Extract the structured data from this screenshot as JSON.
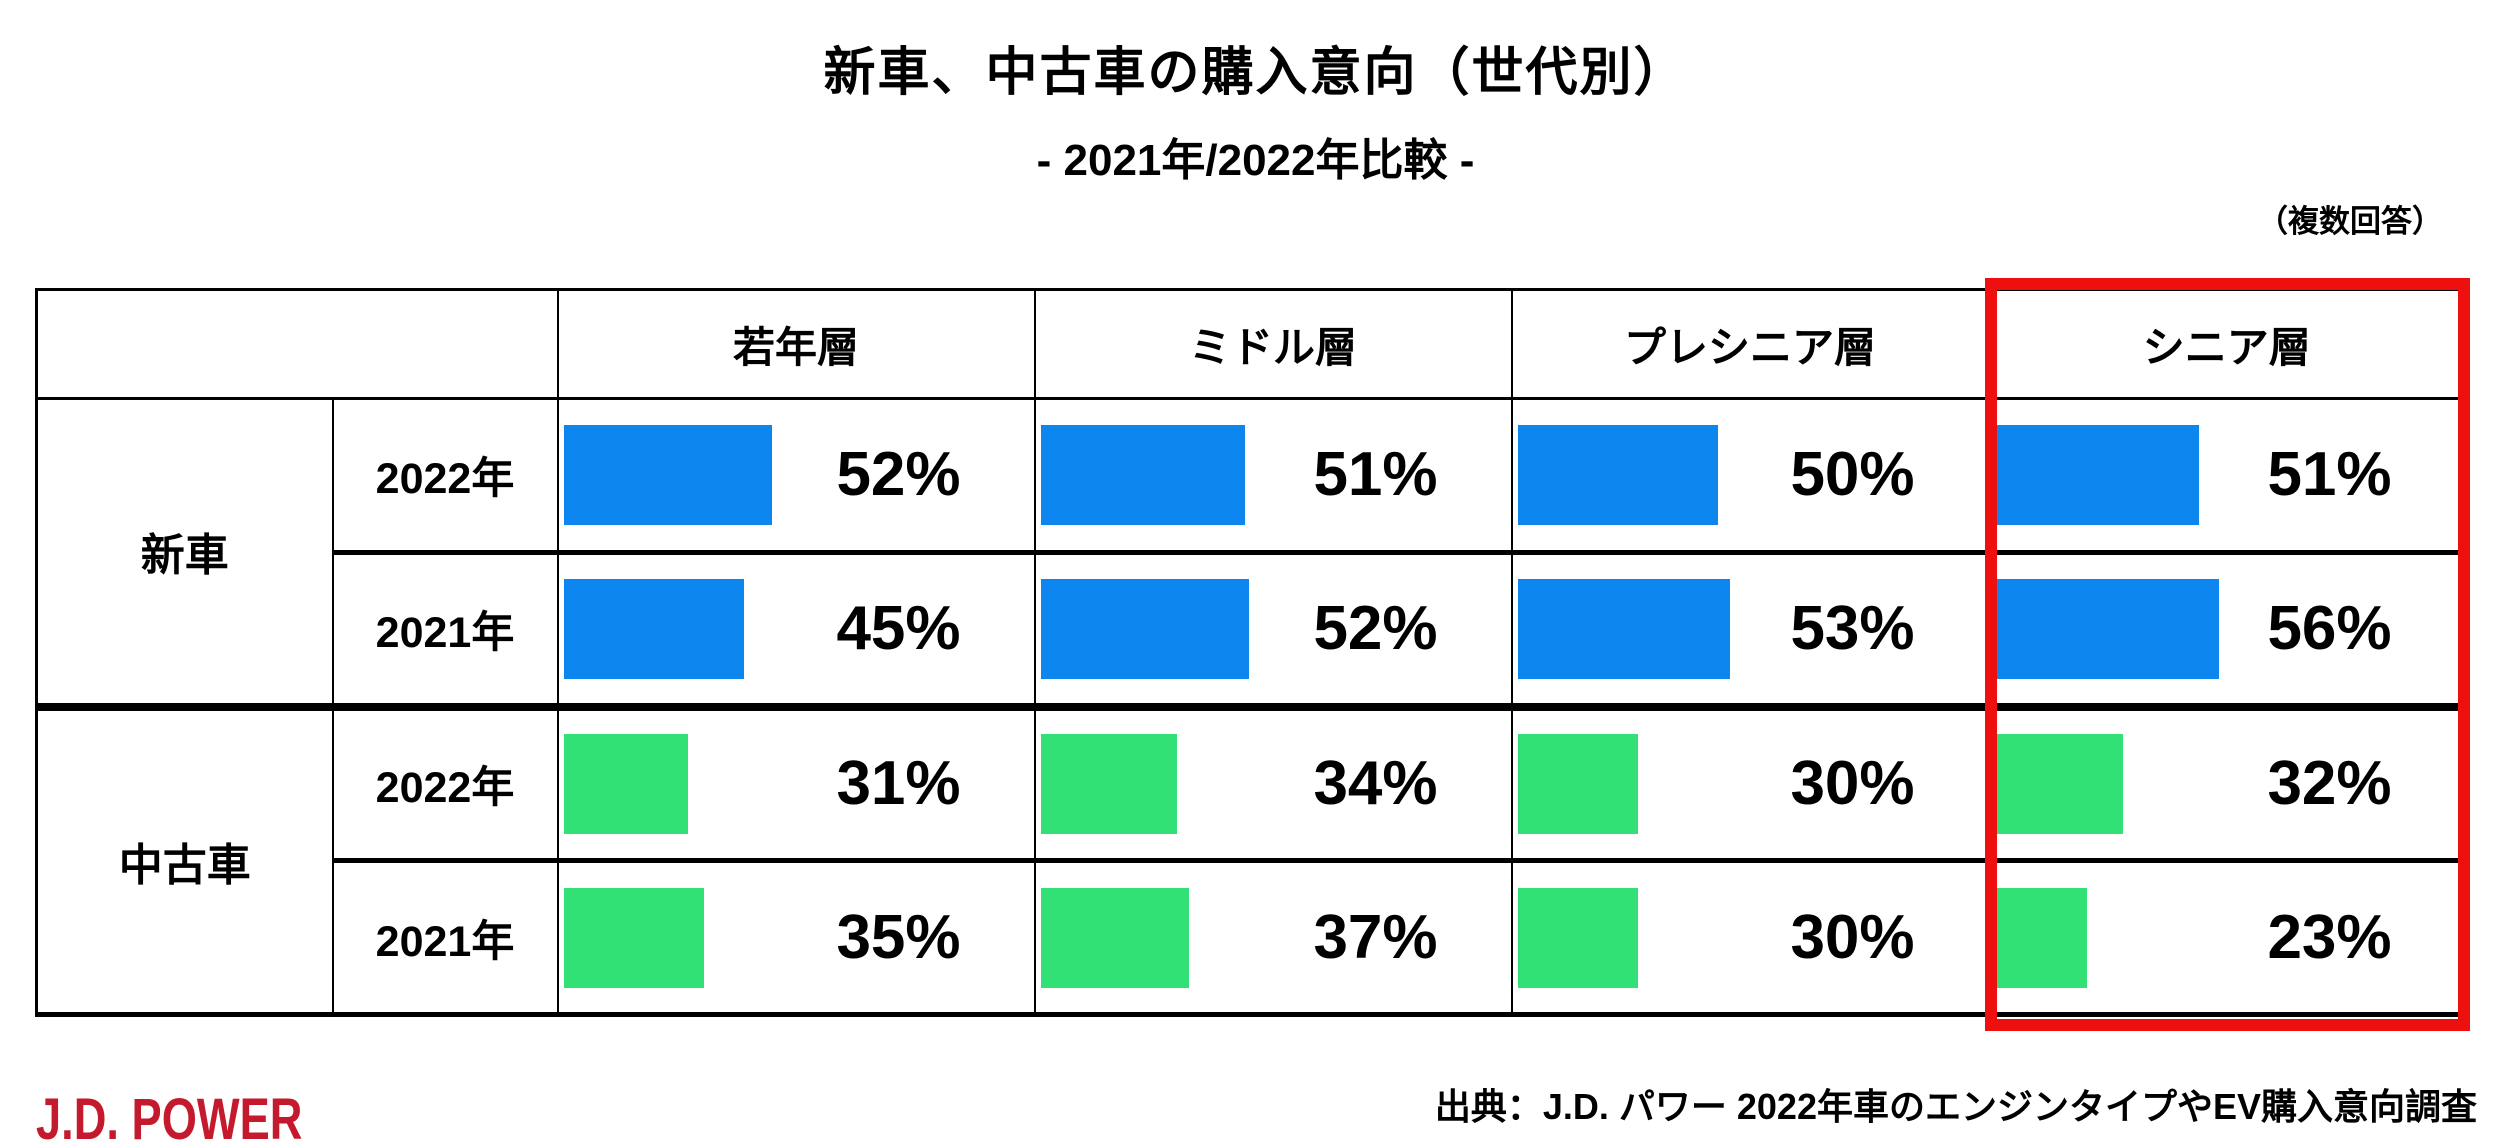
{
  "title": "新車、中古車の購入意向（世代別）",
  "subtitle": "- 2021年/2022年比較 -",
  "note": "（複数回答）",
  "footer": {
    "logo": "J.D. POWER",
    "source": "出典：J.D. パワー 2022年車のエンジンタイプやEV購入意向調査"
  },
  "colors": {
    "new_car_bar": "#0d86f0",
    "used_car_bar": "#32e175",
    "highlight_border": "#ee0f0f",
    "logo_red": "#c5192d",
    "table_border": "#000000"
  },
  "chart_data": {
    "type": "bar",
    "title": "新車、中古車の購入意向（世代別）",
    "subtitle": "- 2021年/2022年比較 -",
    "unit": "%",
    "xlim": [
      0,
      100
    ],
    "categories": [
      "若年層",
      "ミドル層",
      "プレシニア層",
      "シニア層"
    ],
    "row_groups": [
      {
        "label": "新車",
        "bar_color": "#0d86f0",
        "rows": [
          {
            "year": "2022年",
            "values": [
              52,
              51,
              50,
              51
            ]
          },
          {
            "year": "2021年",
            "values": [
              45,
              52,
              53,
              56
            ]
          }
        ]
      },
      {
        "label": "中古車",
        "bar_color": "#32e175",
        "rows": [
          {
            "year": "2022年",
            "values": [
              31,
              34,
              30,
              32
            ]
          },
          {
            "year": "2021年",
            "values": [
              35,
              37,
              30,
              23
            ]
          }
        ]
      }
    ],
    "highlighted_category": "シニア層",
    "annotation": "（複数回答）",
    "source": "出典：J.D. パワー 2022年車のエンジンタイプやEV購入意向調査"
  }
}
